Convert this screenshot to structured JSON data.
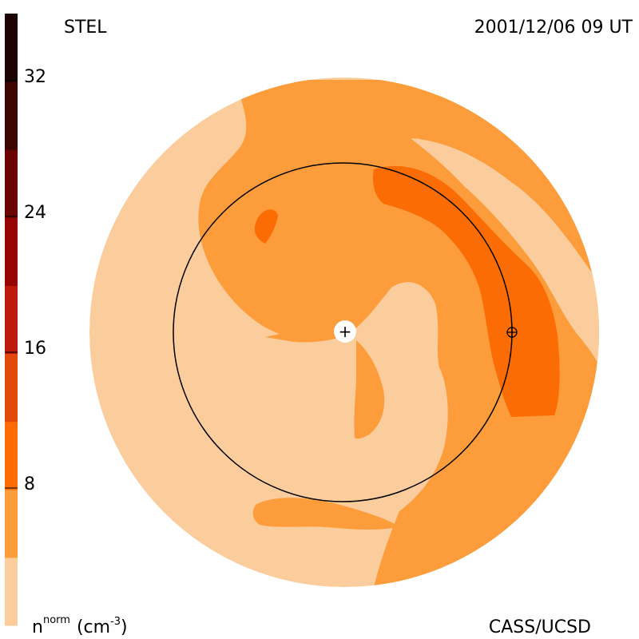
{
  "header": {
    "left_label": "STEL",
    "right_label": "2001/12/06 09 UT"
  },
  "footer": {
    "left_label_main": "n",
    "left_label_sup": "norm",
    "left_label_unit": "(cm",
    "left_label_unit_exp": "-3",
    "left_label_close": ")",
    "right_label": "CASS/UCSD"
  },
  "colorbar": {
    "ticks": [
      {
        "label": "32"
      },
      {
        "label": "24"
      },
      {
        "label": "16"
      },
      {
        "label": "8"
      }
    ],
    "bands": [
      {
        "color": "#fbcc9c"
      },
      {
        "color": "#fc9c3a"
      },
      {
        "color": "#fc6c04"
      },
      {
        "color": "#e24a0c"
      },
      {
        "color": "#be1a0c"
      },
      {
        "color": "#960404"
      },
      {
        "color": "#6a0404"
      },
      {
        "color": "#3e0404"
      },
      {
        "color": "#1c0404"
      }
    ]
  },
  "map": {
    "colors": {
      "level_low": "#fbcc9c",
      "level_mid": "#fc9c3a",
      "level_high": "#fc6c04"
    },
    "sun_symbol": "+",
    "earth_symbol": "⊕"
  }
}
